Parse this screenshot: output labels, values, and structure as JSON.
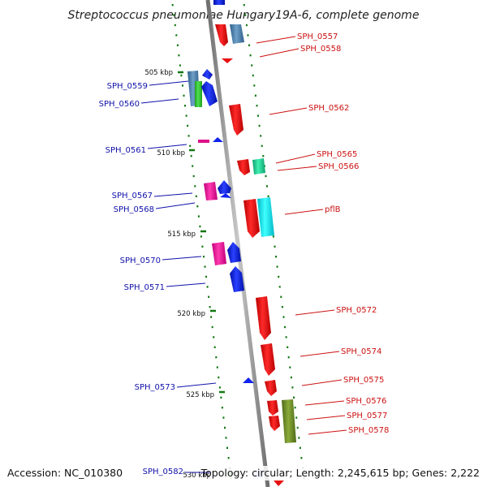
{
  "title": "Streptococcus pneumoniae Hungary19A-6, complete genome",
  "footer": {
    "accession": "Accession: NC_010380",
    "summary": "Topology: circular; Length: 2,245,615 bp; Genes: 2,222"
  },
  "ticks": [
    "505 kbp",
    "510 kbp",
    "515 kbp",
    "520 kbp",
    "525 kbp",
    "530 kbp"
  ],
  "genes_forward": [
    "SPH_0557",
    "SPH_0558",
    "SPH_0562",
    "SPH_0565",
    "SPH_0566",
    "pflB",
    "SPH_0572",
    "SPH_0574",
    "SPH_0575",
    "SPH_0576",
    "SPH_0577",
    "SPH_0578"
  ],
  "genes_reverse": [
    "SPH_0559",
    "SPH_0560",
    "SPH_0561",
    "SPH_0567",
    "SPH_0568",
    "SPH_0570",
    "SPH_0571",
    "SPH_0573",
    "SPH_0582"
  ],
  "colors": {
    "forward_label": "#cc1111",
    "reverse_label": "#1111aa",
    "forward_cds": "#ee1111",
    "reverse_cds": "#1122ee",
    "backbone": "#8a8a8a",
    "ticks": "#117711"
  }
}
